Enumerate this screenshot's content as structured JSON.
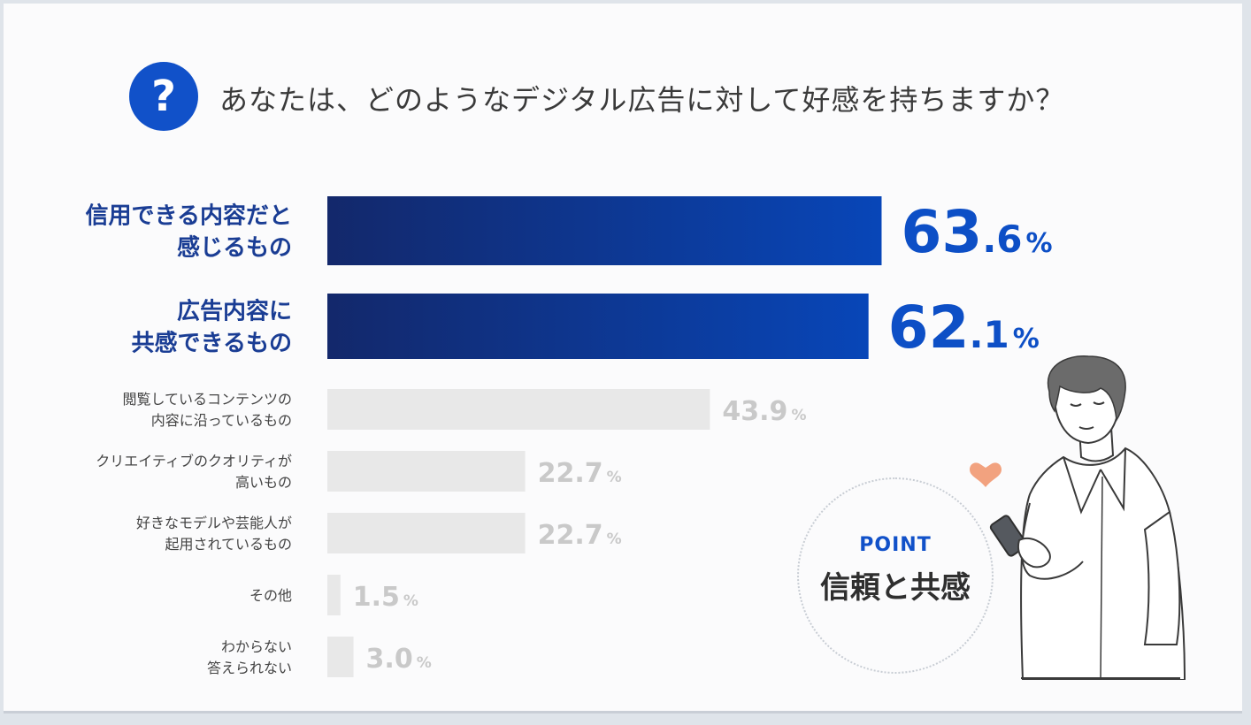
{
  "question": {
    "icon": "question-icon",
    "icon_glyph": "?",
    "text": "あなたは、どのようなデジタル広告に対して好感を持ちますか？"
  },
  "chart_data": {
    "type": "bar",
    "orientation": "horizontal",
    "title": "あなたは、どのようなデジタル広告に対して好感を持ちますか？",
    "unit": "%",
    "xlim": [
      0,
      100
    ],
    "categories": [
      [
        "信用できる内容だと",
        "感じるもの"
      ],
      [
        "広告内容に",
        "共感できるもの"
      ],
      [
        "閲覧しているコンテンツの",
        "内容に沿っているもの"
      ],
      [
        "クリエイティブのクオリティが",
        "高いもの"
      ],
      [
        "好きなモデルや芸能人が",
        "起用されているもの"
      ],
      [
        "その他"
      ],
      [
        "わからない",
        "答えられない"
      ]
    ],
    "values": [
      63.6,
      62.1,
      43.9,
      22.7,
      22.7,
      1.5,
      3.0
    ],
    "highlighted": [
      true,
      true,
      false,
      false,
      false,
      false,
      false
    ],
    "colors": {
      "highlight_start": "#13286b",
      "highlight_end": "#0846b8",
      "highlight_label": "#1a3d94",
      "highlight_value": "#0d4fc6",
      "muted_bar": "#e8e8e8",
      "muted_label": "#444444",
      "muted_value": "#c9c9c9"
    }
  },
  "point": {
    "label": "POINT",
    "text": "信頼と共感"
  },
  "illustration": {
    "icons": [
      "man-with-phone-illustration",
      "heart-icon"
    ]
  }
}
